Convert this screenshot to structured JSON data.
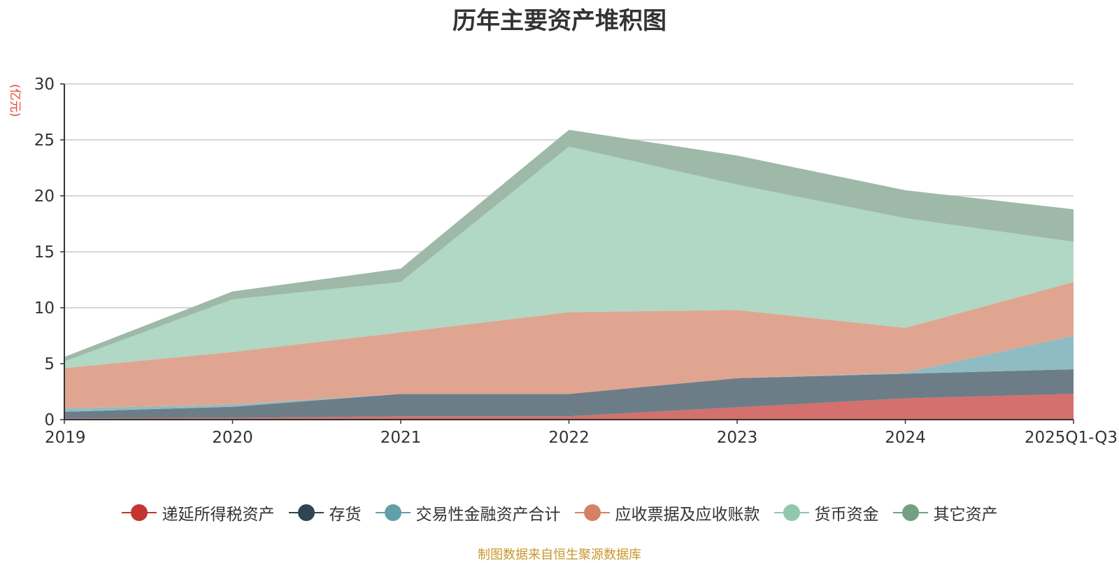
{
  "page": {
    "title": "历年主要资产堆积图",
    "unit_label": "(亿元)",
    "footer": "制图数据来自恒生聚源数据库"
  },
  "chart_data": {
    "type": "area",
    "stacked": true,
    "categories": [
      "2019",
      "2020",
      "2021",
      "2022",
      "2023",
      "2024",
      "2025Q1-Q3"
    ],
    "ylim": [
      0,
      30
    ],
    "yticks": [
      0,
      5,
      10,
      15,
      20,
      25,
      30
    ],
    "grid": true,
    "legend_position": "bottom",
    "series": [
      {
        "name": "递延所得税资产",
        "color": "#c23531",
        "fill": "#d4706d",
        "values": [
          0.1,
          0.15,
          0.3,
          0.3,
          1.1,
          1.9,
          2.3
        ]
      },
      {
        "name": "存货",
        "color": "#2f4554",
        "fill": "#6d7d88",
        "values": [
          0.6,
          1.0,
          2.0,
          2.0,
          2.6,
          2.2,
          2.2
        ]
      },
      {
        "name": "交易性金融资产合计",
        "color": "#61a0a8",
        "fill": "#8fbcc2",
        "values": [
          0.3,
          0.2,
          0.0,
          0.0,
          0.0,
          0.1,
          3.0
        ]
      },
      {
        "name": "应收票据及应收账款",
        "color": "#d48265",
        "fill": "#e0a590",
        "values": [
          3.6,
          4.7,
          5.5,
          7.3,
          6.1,
          4.0,
          4.8
        ]
      },
      {
        "name": "货币资金",
        "color": "#91c7ae",
        "fill": "#b1d7c5",
        "values": [
          0.6,
          4.7,
          4.5,
          14.8,
          11.2,
          9.8,
          3.6
        ]
      },
      {
        "name": "其它资产",
        "color": "#749f83",
        "fill": "#9eb9a7",
        "values": [
          0.4,
          0.7,
          1.2,
          1.5,
          2.6,
          2.5,
          2.9
        ]
      }
    ]
  }
}
